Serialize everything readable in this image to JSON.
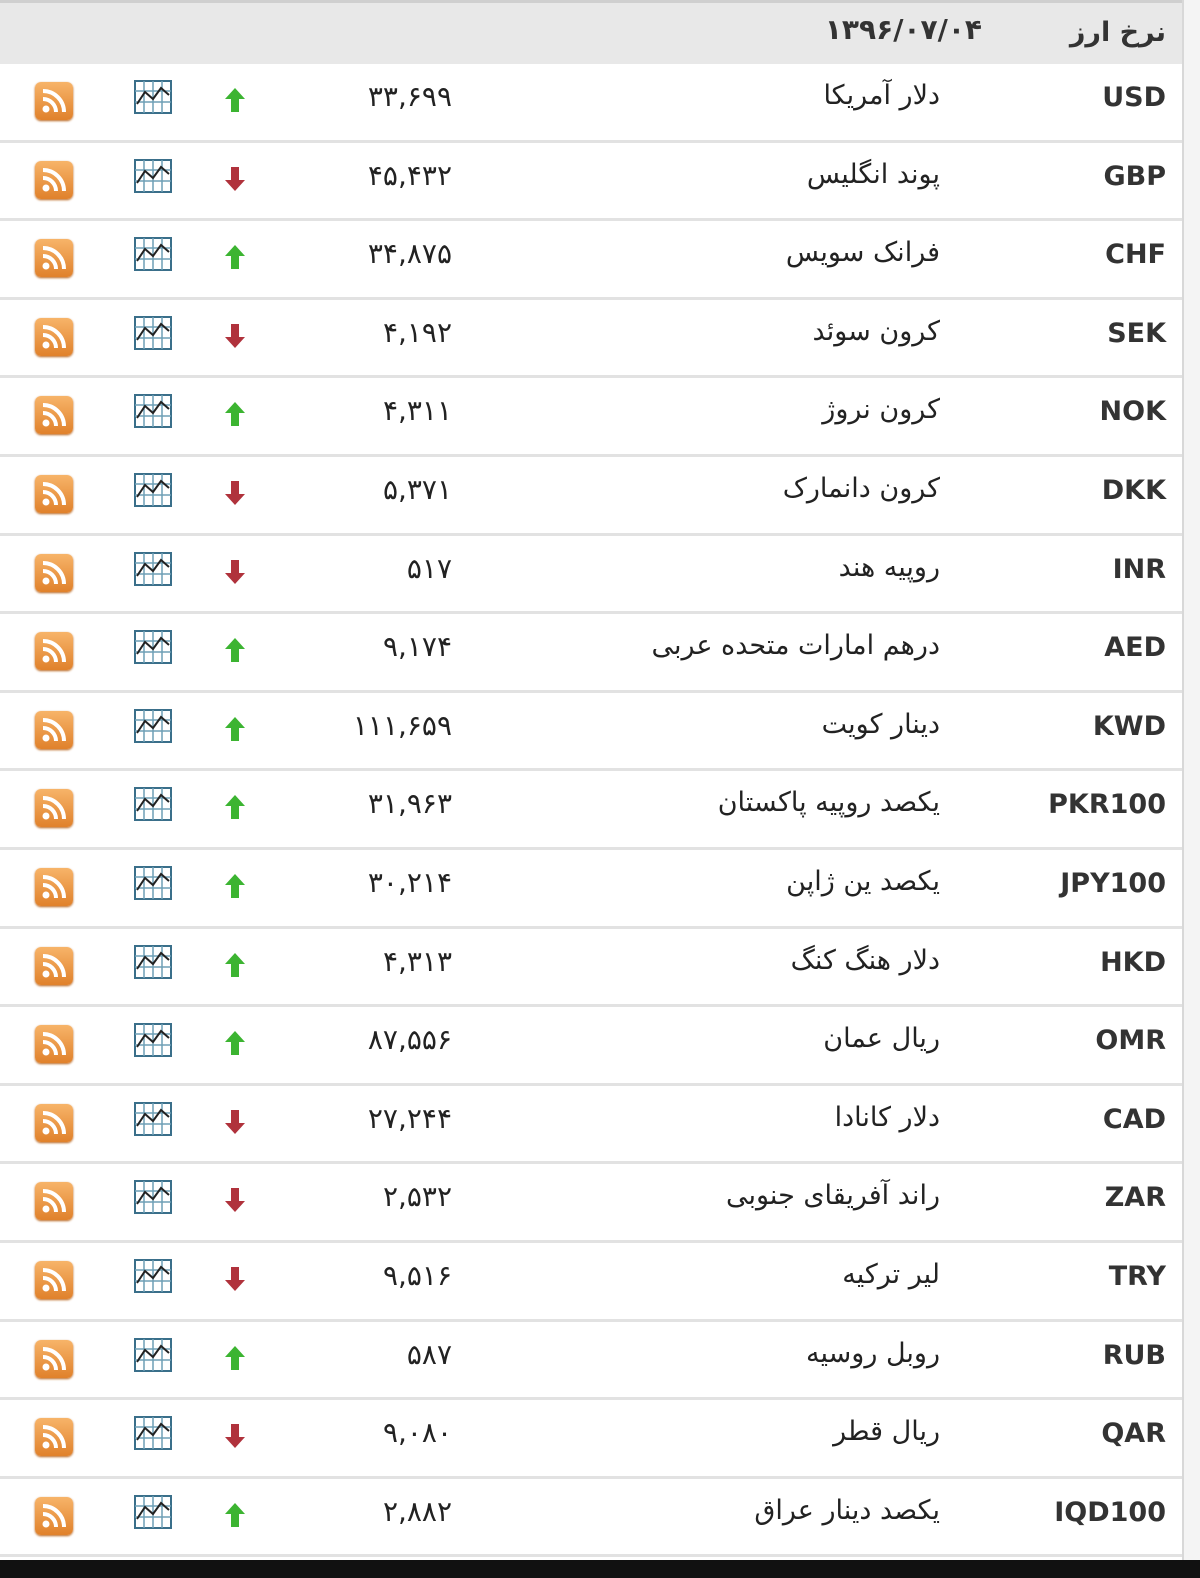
{
  "header": {
    "title": "نرخ ارز",
    "date": "۱۳۹۶/۰۷/۰۴"
  },
  "colors": {
    "up": "#3cb431",
    "down": "#b0323c",
    "rss": "#e8913a"
  },
  "rows": [
    {
      "code": "USD",
      "name": "دلار آمریکا",
      "value": "۳۳,۶۹۹",
      "trend": "up"
    },
    {
      "code": "GBP",
      "name": "پوند انگلیس",
      "value": "۴۵,۴۳۲",
      "trend": "down"
    },
    {
      "code": "CHF",
      "name": "فرانک سویس",
      "value": "۳۴,۸۷۵",
      "trend": "up"
    },
    {
      "code": "SEK",
      "name": "کرون سوئد",
      "value": "۴,۱۹۲",
      "trend": "down"
    },
    {
      "code": "NOK",
      "name": "کرون نروژ",
      "value": "۴,۳۱۱",
      "trend": "up"
    },
    {
      "code": "DKK",
      "name": "کرون دانمارک",
      "value": "۵,۳۷۱",
      "trend": "down"
    },
    {
      "code": "INR",
      "name": "روپیه هند",
      "value": "۵۱۷",
      "trend": "down"
    },
    {
      "code": "AED",
      "name": "درهم امارات متحده عربی",
      "value": "۹,۱۷۴",
      "trend": "up"
    },
    {
      "code": "KWD",
      "name": "دینار کویت",
      "value": "۱۱۱,۶۵۹",
      "trend": "up"
    },
    {
      "code": "PKR100",
      "name": "یکصد روپیه پاکستان",
      "value": "۳۱,۹۶۳",
      "trend": "up"
    },
    {
      "code": "JPY100",
      "name": "یکصد ین ژاپن",
      "value": "۳۰,۲۱۴",
      "trend": "up"
    },
    {
      "code": "HKD",
      "name": "دلار هنگ کنگ",
      "value": "۴,۳۱۳",
      "trend": "up"
    },
    {
      "code": "OMR",
      "name": "ریال عمان",
      "value": "۸۷,۵۵۶",
      "trend": "up"
    },
    {
      "code": "CAD",
      "name": "دلار کانادا",
      "value": "۲۷,۲۴۴",
      "trend": "down"
    },
    {
      "code": "ZAR",
      "name": "راند آفریقای جنوبی",
      "value": "۲,۵۳۲",
      "trend": "down"
    },
    {
      "code": "TRY",
      "name": "لیر ترکیه",
      "value": "۹,۵۱۶",
      "trend": "down"
    },
    {
      "code": "RUB",
      "name": "روبل روسیه",
      "value": "۵۸۷",
      "trend": "up"
    },
    {
      "code": "QAR",
      "name": "ریال قطر",
      "value": "۹,۰۸۰",
      "trend": "down"
    },
    {
      "code": "IQD100",
      "name": "یکصد دینار عراق",
      "value": "۲,۸۸۲",
      "trend": "up"
    }
  ]
}
